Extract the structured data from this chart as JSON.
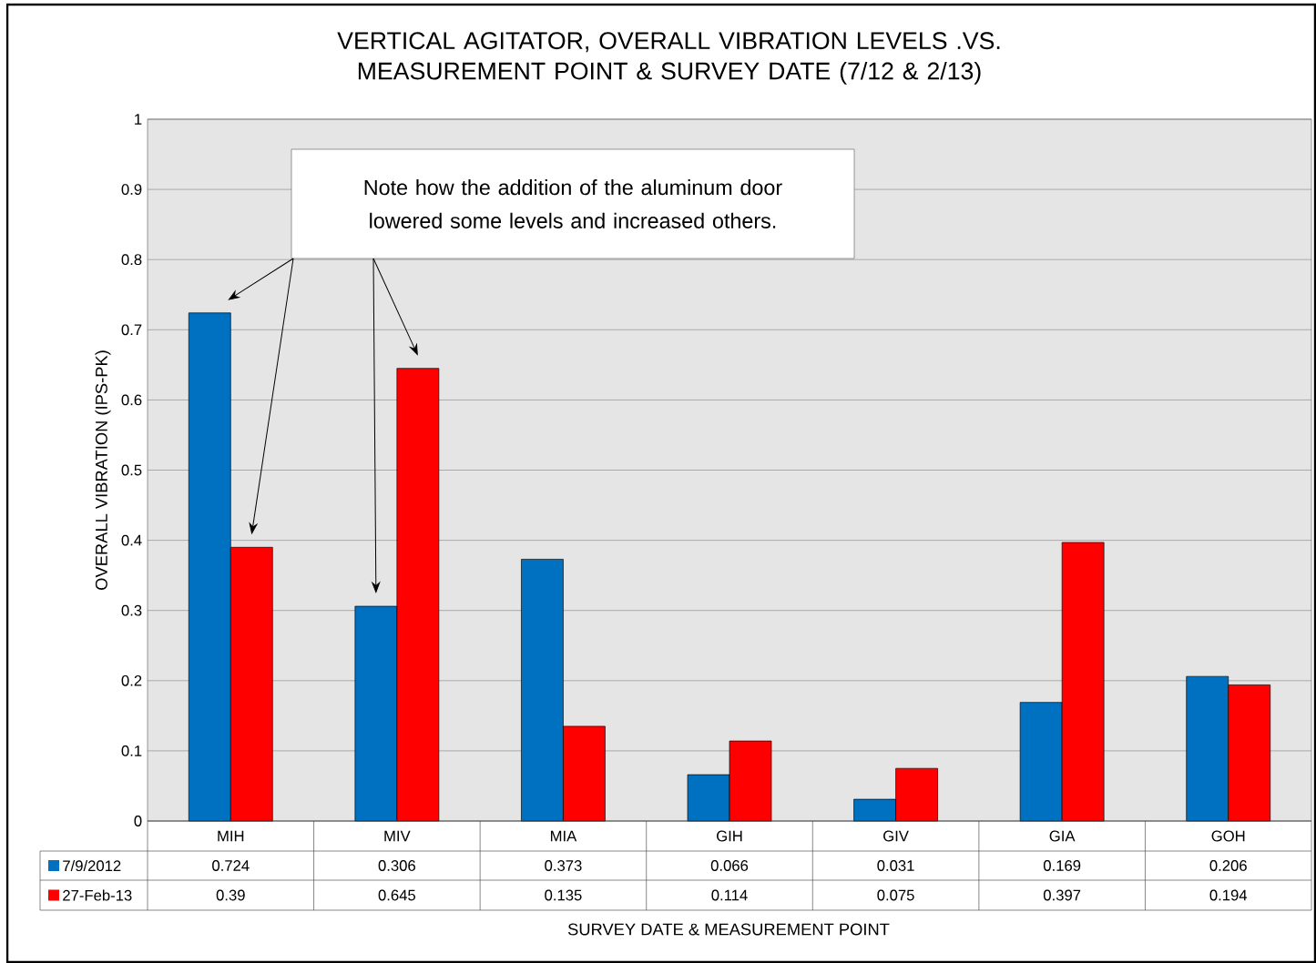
{
  "chart_data": {
    "type": "bar",
    "title": "VERTICAL AGITATOR, OVERALL VIBRATION LEVELS .VS. MEASUREMENT POINT & SURVEY DATE (7/12 & 2/13)",
    "xlabel": "SURVEY DATE & MEASUREMENT POINT",
    "ylabel": "OVERALL VIBRATION (IPS-PK)",
    "categories": [
      "MIH",
      "MIV",
      "MIA",
      "GIH",
      "GIV",
      "GIA",
      "GOH"
    ],
    "series": [
      {
        "name": "7/9/2012",
        "color": "#0070c0",
        "values": [
          0.724,
          0.306,
          0.373,
          0.066,
          0.031,
          0.169,
          0.206
        ]
      },
      {
        "name": "27-Feb-13",
        "color": "#ff0000",
        "values": [
          0.39,
          0.645,
          0.135,
          0.114,
          0.075,
          0.397,
          0.194
        ]
      }
    ],
    "ylim": [
      0,
      1
    ],
    "yticks": [
      0,
      0.1,
      0.2,
      0.3,
      0.4,
      0.5,
      0.6,
      0.7,
      0.8,
      0.9,
      1
    ],
    "grid": true,
    "legend": "bottom",
    "data_labels": true,
    "annotations": [
      "Note how the addition of the aluminum door lowered some levels and increased others."
    ]
  }
}
